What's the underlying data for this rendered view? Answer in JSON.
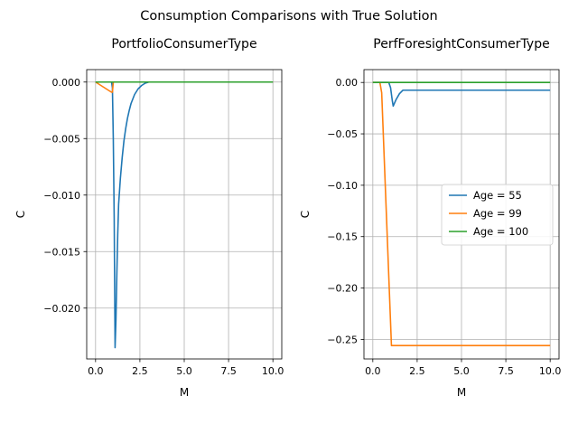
{
  "suptitle": "Consumption Comparisons with True Solution",
  "chart_data": [
    {
      "type": "line",
      "title": "PortfolioConsumerType",
      "xlabel": "M",
      "ylabel": "C",
      "xlim": [
        -0.5,
        10.5
      ],
      "ylim": [
        -0.0245,
        0.0011
      ],
      "xticks": [
        0,
        2.5,
        5,
        7.5,
        10
      ],
      "xtick_labels": [
        "0.0",
        "2.5",
        "5.0",
        "7.5",
        "10.0"
      ],
      "yticks": [
        0,
        -0.005,
        -0.01,
        -0.015,
        -0.02
      ],
      "ytick_labels": [
        "0.000",
        "−0.005",
        "−0.010",
        "−0.015",
        "−0.020"
      ],
      "grid": true,
      "series": [
        {
          "name": "Age = 55",
          "color": "#1f77b4",
          "x": [
            0,
            0.5,
            0.9,
            0.95,
            1.0,
            1.05,
            1.1,
            1.15,
            1.2,
            1.25,
            1.3,
            1.4,
            1.5,
            1.6,
            1.7,
            1.8,
            1.9,
            2.0,
            2.2,
            2.4,
            2.6,
            2.8,
            3.0,
            4.0,
            5.0,
            7.5,
            10
          ],
          "y": [
            0,
            0,
            0,
            -0.0005,
            -0.005,
            -0.012,
            -0.0235,
            -0.021,
            -0.017,
            -0.0135,
            -0.0108,
            -0.0085,
            -0.0067,
            -0.0052,
            -0.0041,
            -0.0032,
            -0.0025,
            -0.0019,
            -0.0011,
            -0.0006,
            -0.0003,
            -0.0001,
            0,
            0,
            0,
            0,
            0
          ]
        },
        {
          "name": "Age = 99",
          "color": "#ff7f0e",
          "x": [
            0,
            0.5,
            0.9,
            0.95,
            1.0,
            1.5,
            5,
            10
          ],
          "y": [
            0,
            -0.0005,
            -0.0009,
            -0.0009,
            0,
            0,
            0,
            0
          ]
        },
        {
          "name": "Age = 100",
          "color": "#2ca02c",
          "x": [
            0,
            5,
            10
          ],
          "y": [
            0,
            0,
            0
          ]
        }
      ]
    },
    {
      "type": "line",
      "title": "PerfForesightConsumerType",
      "xlabel": "M",
      "ylabel": "C",
      "xlim": [
        -0.5,
        10.5
      ],
      "ylim": [
        -0.269,
        0.0125
      ],
      "xticks": [
        0,
        2.5,
        5,
        7.5,
        10
      ],
      "xtick_labels": [
        "0.0",
        "2.5",
        "5.0",
        "7.5",
        "10.0"
      ],
      "yticks": [
        0,
        -0.05,
        -0.1,
        -0.15,
        -0.2,
        -0.25
      ],
      "ytick_labels": [
        "0.00",
        "−0.05",
        "−0.10",
        "−0.15",
        "−0.20",
        "−0.25"
      ],
      "grid": true,
      "legend": "center-right",
      "series": [
        {
          "name": "Age = 55",
          "color": "#1f77b4",
          "x": [
            0,
            0.9,
            1.0,
            1.1,
            1.15,
            1.3,
            1.5,
            1.7,
            2.0,
            5,
            10
          ],
          "y": [
            0,
            0,
            -0.005,
            -0.018,
            -0.023,
            -0.017,
            -0.011,
            -0.0075,
            -0.0075,
            -0.0075,
            -0.0075
          ]
        },
        {
          "name": "Age = 99",
          "color": "#ff7f0e",
          "x": [
            0,
            0.4,
            0.5,
            1.05,
            1.5,
            5,
            10
          ],
          "y": [
            0,
            0,
            -0.01,
            -0.256,
            -0.256,
            -0.256,
            -0.256
          ]
        },
        {
          "name": "Age = 100",
          "color": "#2ca02c",
          "x": [
            0,
            5,
            10
          ],
          "y": [
            0,
            0,
            0
          ]
        }
      ]
    }
  ]
}
